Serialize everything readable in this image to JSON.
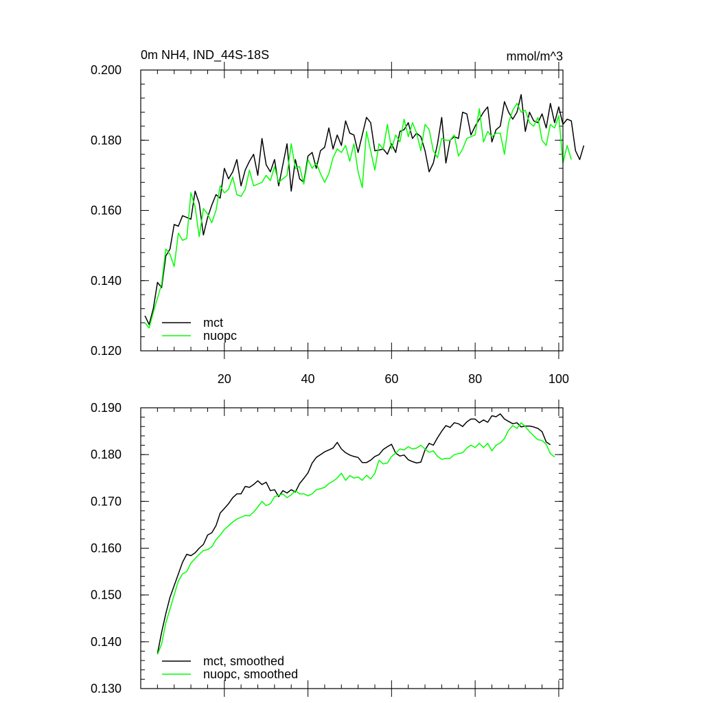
{
  "chart_data": [
    {
      "type": "line",
      "title_left": "0m NH4, IND_44S-18S",
      "title_right": "mmol/m^3",
      "xlim": [
        0,
        101
      ],
      "ylim": [
        0.12,
        0.2
      ],
      "yticks": [
        "0.200",
        "0.180",
        "0.160",
        "0.140",
        "0.120"
      ],
      "xticks": [
        "20",
        "40",
        "60",
        "80",
        "100"
      ],
      "series": [
        {
          "name": "mct",
          "color": "#000000",
          "x_start": 1,
          "values": [
            0.13,
            0.1275,
            0.132,
            0.1395,
            0.138,
            0.147,
            0.149,
            0.156,
            0.1555,
            0.1585,
            0.158,
            0.1575,
            0.1655,
            0.162,
            0.153,
            0.158,
            0.1615,
            0.1645,
            0.1635,
            0.172,
            0.169,
            0.171,
            0.1745,
            0.167,
            0.1715,
            0.174,
            0.176,
            0.17,
            0.1805,
            0.173,
            0.171,
            0.1745,
            0.167,
            0.173,
            0.179,
            0.1655,
            0.1745,
            0.169,
            0.168,
            0.1755,
            0.1765,
            0.172,
            0.177,
            0.178,
            0.1835,
            0.1775,
            0.1815,
            0.1785,
            0.1855,
            0.182,
            0.1815,
            0.1765,
            0.1815,
            0.1865,
            0.185,
            0.177,
            0.1772,
            0.1775,
            0.176,
            0.179,
            0.1765,
            0.1825,
            0.183,
            0.185,
            0.1805,
            0.182,
            0.181,
            0.177,
            0.171,
            0.1735,
            0.179,
            0.1865,
            0.1735,
            0.18,
            0.181,
            0.1805,
            0.188,
            0.1875,
            0.1815,
            0.184,
            0.186,
            0.188,
            0.1895,
            0.1795,
            0.183,
            0.184,
            0.191,
            0.188,
            0.186,
            0.188,
            0.193,
            0.1825,
            0.188,
            0.1855,
            0.185,
            0.1875,
            0.1835,
            0.1905,
            0.185,
            0.1895,
            0.1845,
            0.186,
            0.1855,
            0.177,
            0.1745,
            0.1785
          ]
        },
        {
          "name": "nuopc",
          "color": "#00ff00",
          "x_start": 1,
          "values": [
            0.128,
            0.1265,
            0.131,
            0.135,
            0.139,
            0.149,
            0.1475,
            0.144,
            0.1535,
            0.1515,
            0.152,
            0.165,
            0.161,
            0.1525,
            0.1605,
            0.159,
            0.1565,
            0.16,
            0.167,
            0.165,
            0.166,
            0.1695,
            0.1645,
            0.164,
            0.166,
            0.1715,
            0.167,
            0.1675,
            0.168,
            0.17,
            0.1685,
            0.1725,
            0.168,
            0.169,
            0.17,
            0.179,
            0.172,
            0.1725,
            0.1675,
            0.1745,
            0.172,
            0.1735,
            0.1705,
            0.168,
            0.1705,
            0.175,
            0.1775,
            0.1765,
            0.1785,
            0.174,
            0.179,
            0.171,
            0.1665,
            0.1825,
            0.177,
            0.1715,
            0.179,
            0.1775,
            0.1845,
            0.1775,
            0.1815,
            0.1795,
            0.186,
            0.181,
            0.185,
            0.182,
            0.177,
            0.1845,
            0.183,
            0.177,
            0.175,
            0.1805,
            0.18,
            0.18,
            0.1815,
            0.1755,
            0.1775,
            0.1805,
            0.181,
            0.1815,
            0.189,
            0.1795,
            0.1825,
            0.181,
            0.182,
            0.182,
            0.176,
            0.185,
            0.1885,
            0.1905,
            0.188,
            0.1885,
            0.185,
            0.184,
            0.1865,
            0.18,
            0.1785,
            0.1845,
            0.1835,
            0.187,
            0.1735,
            0.1785,
            0.1745
          ]
        }
      ],
      "legend": {
        "placement": "bottom-left"
      }
    },
    {
      "type": "line",
      "xlim": [
        0,
        101
      ],
      "ylim": [
        0.13,
        0.19
      ],
      "yticks": [
        "0.190",
        "0.180",
        "0.170",
        "0.160",
        "0.150",
        "0.140",
        "0.130"
      ],
      "series": [
        {
          "name": "mct, smoothed",
          "color": "#000000",
          "x_start": 4,
          "values": [
            0.1375,
            0.142,
            0.146,
            0.1495,
            0.152,
            0.1545,
            0.157,
            0.1587,
            0.1584,
            0.159,
            0.16,
            0.1608,
            0.1628,
            0.1633,
            0.1648,
            0.1675,
            0.1685,
            0.1695,
            0.1708,
            0.1716,
            0.1716,
            0.1732,
            0.173,
            0.1736,
            0.1744,
            0.1736,
            0.1741,
            0.1723,
            0.1725,
            0.171,
            0.1723,
            0.1718,
            0.1725,
            0.172,
            0.1738,
            0.1749,
            0.1761,
            0.1782,
            0.1794,
            0.18,
            0.1806,
            0.181,
            0.1814,
            0.1826,
            0.1812,
            0.1804,
            0.1799,
            0.1796,
            0.1794,
            0.1783,
            0.1783,
            0.1788,
            0.1796,
            0.18,
            0.1811,
            0.1817,
            0.1822,
            0.1803,
            0.1797,
            0.1799,
            0.1789,
            0.1785,
            0.1782,
            0.1784,
            0.181,
            0.1824,
            0.182,
            0.1836,
            0.185,
            0.1862,
            0.1858,
            0.1868,
            0.1866,
            0.186,
            0.187,
            0.1876,
            0.1876,
            0.1868,
            0.1874,
            0.1869,
            0.1883,
            0.1881,
            0.1887,
            0.1876,
            0.1871,
            0.1866,
            0.1868,
            0.1859,
            0.1861,
            0.1861,
            0.1859,
            0.1856,
            0.1849,
            0.1827,
            0.1821
          ]
        },
        {
          "name": "nuopc, smoothed",
          "color": "#00ff00",
          "x_start": 4,
          "values": [
            0.1373,
            0.1395,
            0.144,
            0.147,
            0.15,
            0.153,
            0.1545,
            0.155,
            0.1568,
            0.1578,
            0.1587,
            0.1595,
            0.1597,
            0.1603,
            0.1618,
            0.1628,
            0.164,
            0.1648,
            0.1656,
            0.1662,
            0.1666,
            0.167,
            0.1669,
            0.1677,
            0.1688,
            0.17,
            0.1691,
            0.1695,
            0.171,
            0.1713,
            0.1716,
            0.1708,
            0.1714,
            0.1723,
            0.1716,
            0.1716,
            0.1712,
            0.1716,
            0.1725,
            0.1727,
            0.173,
            0.1738,
            0.1743,
            0.175,
            0.176,
            0.1745,
            0.1755,
            0.175,
            0.1752,
            0.1745,
            0.1756,
            0.1748,
            0.176,
            0.1788,
            0.178,
            0.1782,
            0.1796,
            0.1803,
            0.1812,
            0.181,
            0.1817,
            0.1812,
            0.1814,
            0.182,
            0.1812,
            0.1805,
            0.1808,
            0.1796,
            0.179,
            0.1792,
            0.1792,
            0.18,
            0.1802,
            0.1804,
            0.1814,
            0.182,
            0.1815,
            0.1824,
            0.1815,
            0.1824,
            0.1808,
            0.182,
            0.1825,
            0.1834,
            0.1852,
            0.1862,
            0.1856,
            0.1868,
            0.186,
            0.1849,
            0.184,
            0.1832,
            0.183,
            0.1822,
            0.1802,
            0.1795
          ]
        }
      ],
      "legend": {
        "placement": "bottom-left"
      }
    }
  ]
}
